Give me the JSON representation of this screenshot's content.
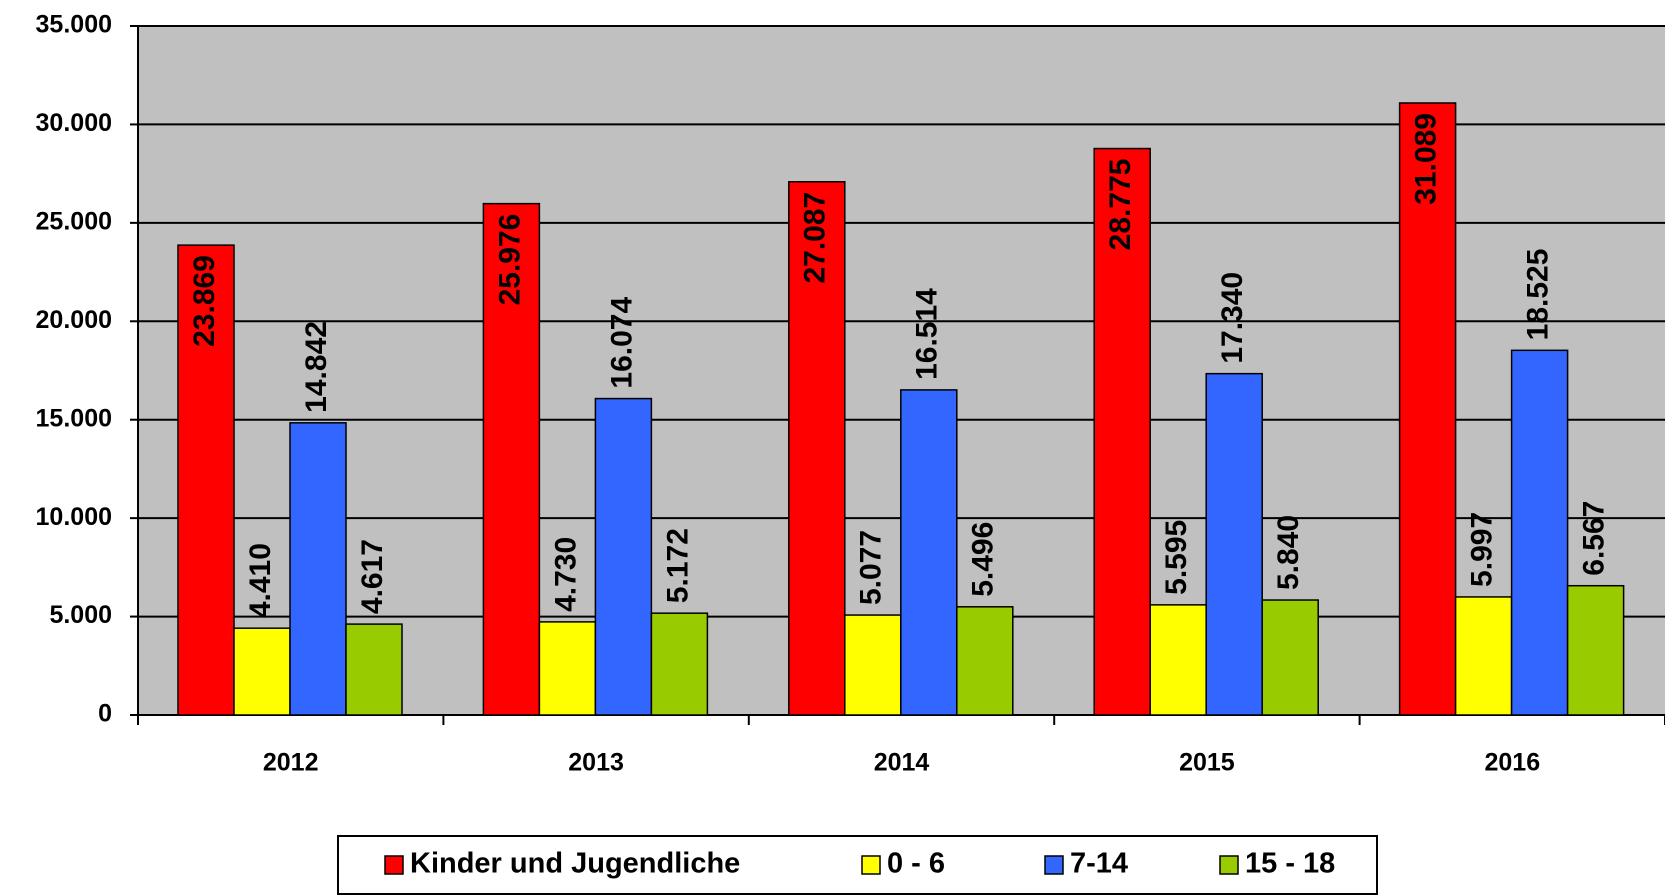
{
  "chart_data": {
    "type": "bar",
    "categories": [
      "2012",
      "2013",
      "2014",
      "2015",
      "2016"
    ],
    "series": [
      {
        "name": "Kinder und Jugendliche",
        "color": "#ff0000",
        "values": [
          23869,
          25976,
          27087,
          28775,
          31089
        ],
        "value_labels": [
          "23.869",
          "25.976",
          "27.087",
          "28.775",
          "31.089"
        ]
      },
      {
        "name": "0 - 6",
        "color": "#ffff00",
        "values": [
          4410,
          4730,
          5077,
          5595,
          5997
        ],
        "value_labels": [
          "4.410",
          "4.730",
          "5.077",
          "5.595",
          "5.997"
        ]
      },
      {
        "name": "7-14",
        "color": "#3366ff",
        "values": [
          14842,
          16074,
          16514,
          17340,
          18525
        ],
        "value_labels": [
          "14.842",
          "16.074",
          "16.514",
          "17.340",
          "18.525"
        ]
      },
      {
        "name": "15 - 18",
        "color": "#99cc00",
        "values": [
          4617,
          5172,
          5496,
          5840,
          6567
        ],
        "value_labels": [
          "4.617",
          "5.172",
          "5.496",
          "5.840",
          "6.567"
        ]
      }
    ],
    "ylim": [
      0,
      35000
    ],
    "yticks": [
      {
        "value": 0,
        "label": "0"
      },
      {
        "value": 5000,
        "label": "5.000"
      },
      {
        "value": 10000,
        "label": "10.000"
      },
      {
        "value": 15000,
        "label": "15.000"
      },
      {
        "value": 20000,
        "label": "20.000"
      },
      {
        "value": 25000,
        "label": "25.000"
      },
      {
        "value": 30000,
        "label": "30.000"
      },
      {
        "value": 35000,
        "label": "35.000"
      }
    ],
    "grid": true,
    "legend": "bottom"
  }
}
